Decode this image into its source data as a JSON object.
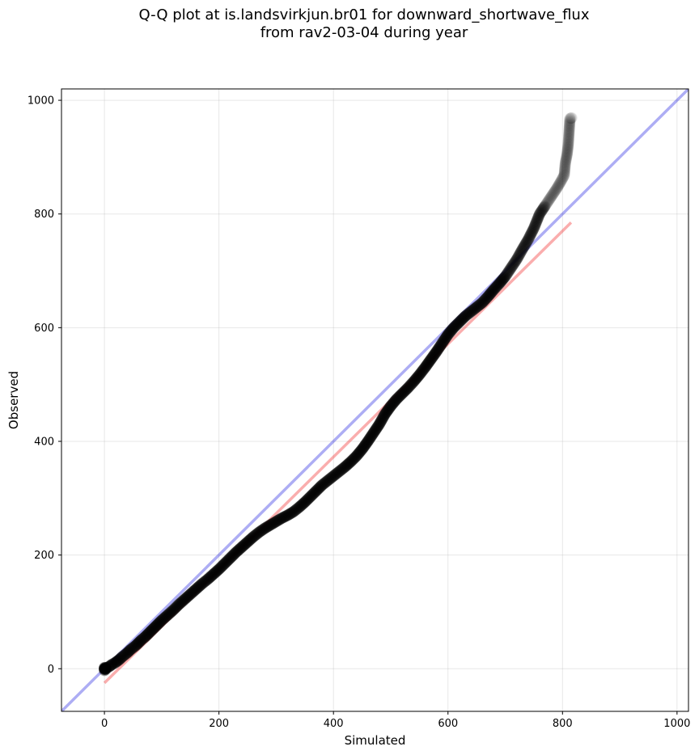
{
  "chart_data": {
    "type": "scatter",
    "title_lines": [
      "Q-Q plot at is.landsvirkjun.br01 for downward_shortwave_flux",
      "from rav2-03-04 during year"
    ],
    "xlabel": "Simulated",
    "ylabel": "Observed",
    "xlim": [
      -75,
      1020
    ],
    "ylim": [
      -75,
      1020
    ],
    "xticks": [
      0,
      200,
      400,
      600,
      800,
      1000
    ],
    "yticks": [
      0,
      200,
      400,
      600,
      800,
      1000
    ],
    "grid": true,
    "reference_lines": [
      {
        "kind": "identity y = x",
        "color": "#0000dd",
        "opacity": 0.32
      },
      {
        "kind": "linear fit",
        "color": "#ee0000",
        "opacity": 0.32,
        "x": [
          0,
          815
        ],
        "y": [
          -25,
          785
        ]
      }
    ],
    "point_color": "#000000",
    "points": [
      [
        0,
        -3
      ],
      [
        0,
        -1
      ],
      [
        0,
        0
      ],
      [
        0,
        1
      ],
      [
        0,
        2
      ],
      [
        1,
        -2
      ],
      [
        1,
        1
      ],
      [
        2,
        -1
      ],
      [
        2,
        2
      ],
      [
        3,
        0
      ],
      [
        5,
        2
      ],
      [
        7,
        3
      ],
      [
        10,
        5
      ],
      [
        14,
        8
      ],
      [
        18,
        10
      ],
      [
        22,
        13
      ],
      [
        26,
        16
      ],
      [
        30,
        20
      ],
      [
        35,
        24
      ],
      [
        40,
        28
      ],
      [
        45,
        33
      ],
      [
        50,
        37
      ],
      [
        55,
        41
      ],
      [
        60,
        46
      ],
      [
        65,
        51
      ],
      [
        70,
        55
      ],
      [
        75,
        60
      ],
      [
        80,
        65
      ],
      [
        85,
        70
      ],
      [
        90,
        75
      ],
      [
        95,
        80
      ],
      [
        100,
        85
      ],
      [
        110,
        94
      ],
      [
        120,
        103
      ],
      [
        130,
        113
      ],
      [
        140,
        122
      ],
      [
        150,
        131
      ],
      [
        160,
        140
      ],
      [
        170,
        149
      ],
      [
        180,
        157
      ],
      [
        190,
        166
      ],
      [
        200,
        175
      ],
      [
        210,
        185
      ],
      [
        220,
        195
      ],
      [
        230,
        205
      ],
      [
        240,
        214
      ],
      [
        250,
        223
      ],
      [
        260,
        232
      ],
      [
        270,
        240
      ],
      [
        280,
        247
      ],
      [
        290,
        253
      ],
      [
        300,
        259
      ],
      [
        310,
        265
      ],
      [
        320,
        270
      ],
      [
        330,
        276
      ],
      [
        340,
        284
      ],
      [
        350,
        293
      ],
      [
        360,
        303
      ],
      [
        370,
        313
      ],
      [
        380,
        323
      ],
      [
        390,
        331
      ],
      [
        400,
        339
      ],
      [
        410,
        347
      ],
      [
        420,
        355
      ],
      [
        430,
        364
      ],
      [
        440,
        374
      ],
      [
        450,
        386
      ],
      [
        460,
        400
      ],
      [
        470,
        415
      ],
      [
        480,
        430
      ],
      [
        490,
        448
      ],
      [
        500,
        462
      ],
      [
        510,
        474
      ],
      [
        520,
        484
      ],
      [
        530,
        494
      ],
      [
        540,
        505
      ],
      [
        550,
        517
      ],
      [
        560,
        530
      ],
      [
        570,
        544
      ],
      [
        580,
        558
      ],
      [
        590,
        573
      ],
      [
        600,
        588
      ],
      [
        610,
        600
      ],
      [
        620,
        610
      ],
      [
        630,
        620
      ],
      [
        640,
        628
      ],
      [
        650,
        636
      ],
      [
        660,
        644
      ],
      [
        670,
        655
      ],
      [
        680,
        667
      ],
      [
        690,
        678
      ],
      [
        700,
        690
      ],
      [
        710,
        705
      ],
      [
        720,
        720
      ],
      [
        730,
        738
      ],
      [
        740,
        755
      ],
      [
        750,
        775
      ],
      [
        760,
        800
      ],
      [
        770,
        815
      ],
      [
        780,
        830
      ],
      [
        790,
        845
      ],
      [
        797,
        857
      ],
      [
        803,
        868
      ],
      [
        805,
        890
      ],
      [
        808,
        905
      ],
      [
        810,
        922
      ],
      [
        813,
        968
      ],
      [
        816,
        969
      ]
    ]
  }
}
